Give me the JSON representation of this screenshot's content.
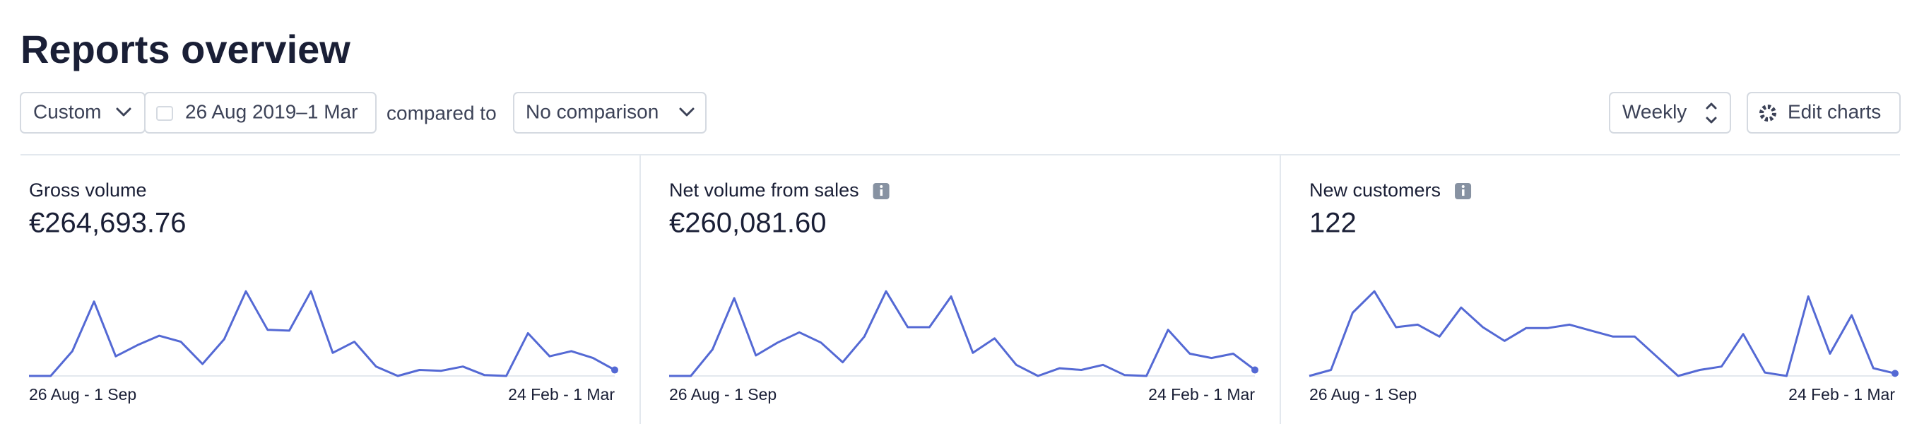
{
  "header": {
    "title": "Reports overview"
  },
  "controls": {
    "range_preset": "Custom",
    "date_range": "26 Aug 2019–1 Mar",
    "compared_to": "compared to",
    "comparison": "No comparison",
    "interval": "Weekly",
    "edit_charts": "Edit charts"
  },
  "chart_data": [
    {
      "type": "line",
      "title": "Gross volume",
      "total": "€264,693.76",
      "info_icon": false,
      "color": "#5469d4",
      "categories": [
        "26 Aug - 1 Sep",
        null,
        null,
        null,
        null,
        null,
        null,
        null,
        null,
        null,
        null,
        null,
        null,
        null,
        null,
        null,
        null,
        null,
        null,
        null,
        null,
        null,
        null,
        null,
        null,
        null,
        null,
        "24 Feb - 1 Mar"
      ],
      "values": [
        0,
        0,
        29,
        87,
        23,
        36,
        47,
        40,
        14,
        43,
        99,
        54,
        53,
        99,
        27,
        40,
        11,
        0,
        7,
        6,
        11,
        1,
        0,
        50,
        23,
        29,
        21,
        7
      ],
      "ylim": [
        0,
        100
      ]
    },
    {
      "type": "line",
      "title": "Net volume from sales",
      "total": "€260,081.60",
      "info_icon": true,
      "color": "#5469d4",
      "categories": [
        "26 Aug - 1 Sep",
        null,
        null,
        null,
        null,
        null,
        null,
        null,
        null,
        null,
        null,
        null,
        null,
        null,
        null,
        null,
        null,
        null,
        null,
        null,
        null,
        null,
        null,
        null,
        null,
        null,
        null,
        "24 Feb - 1 Mar"
      ],
      "values": [
        0,
        0,
        31,
        91,
        24,
        39,
        51,
        39,
        16,
        46,
        99,
        57,
        57,
        93,
        27,
        44,
        13,
        0,
        9,
        7,
        13,
        1,
        0,
        54,
        26,
        21,
        26,
        7
      ],
      "ylim": [
        0,
        100
      ]
    },
    {
      "type": "line",
      "title": "New customers",
      "total": "122",
      "info_icon": true,
      "color": "#5469d4",
      "categories": [
        "26 Aug - 1 Sep",
        null,
        null,
        null,
        null,
        null,
        null,
        null,
        null,
        null,
        null,
        null,
        null,
        null,
        null,
        null,
        null,
        null,
        null,
        null,
        null,
        null,
        null,
        null,
        null,
        null,
        null,
        "24 Feb - 1 Mar"
      ],
      "values": [
        0,
        7,
        74,
        99,
        57,
        60,
        46,
        80,
        57,
        41,
        56,
        56,
        60,
        53,
        46,
        46,
        23,
        0,
        7,
        11,
        49,
        4,
        0,
        93,
        26,
        71,
        9,
        3
      ],
      "ylim": [
        0,
        100
      ]
    }
  ]
}
